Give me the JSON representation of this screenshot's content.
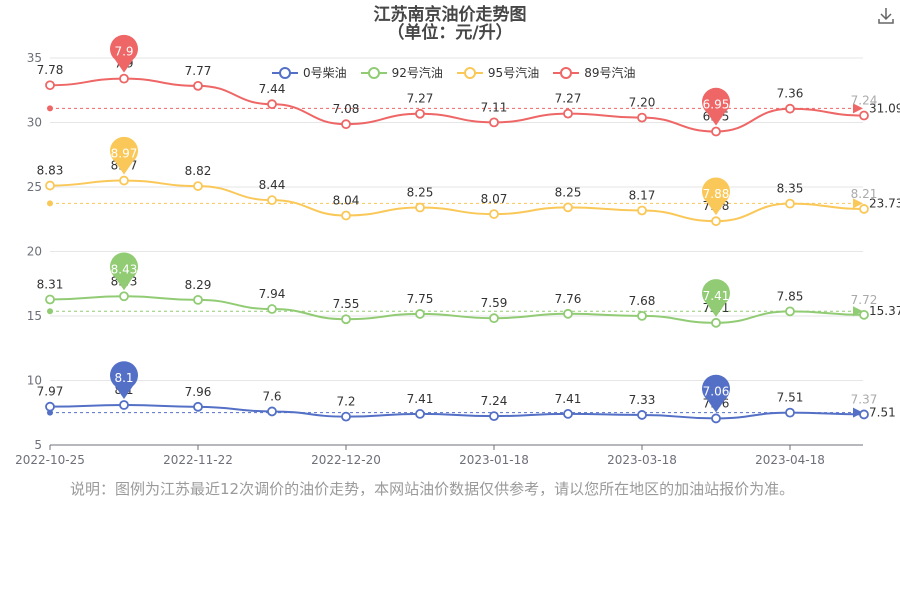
{
  "title": "江苏南京油价走势图",
  "subtitle": "（单位：元/升）",
  "note": "说明：图例为江苏最近12次调价的油价走势，本网站油价数据仅供参考，请以您所在地区的加油站报价为准。",
  "icons": {
    "download": "download-icon"
  },
  "chart_data": {
    "type": "line",
    "x": [
      "2022-10-25",
      "2022-11-08",
      "2022-11-22",
      "2022-12-06",
      "2022-12-20",
      "2023-01-03",
      "2023-01-18",
      "2023-02-03",
      "2023-03-18a",
      "2023-03-18",
      "2023-04-04",
      "2023-04-18"
    ],
    "xticks": [
      "2022-10-25",
      "2022-11-22",
      "2022-12-20",
      "2023-01-18",
      "2023-03-18",
      "2023-04-18"
    ],
    "yticks": [
      5,
      10,
      15,
      20,
      25,
      30,
      35
    ],
    "ylim": [
      5,
      35
    ],
    "grid": true,
    "legend_position": "top",
    "series": [
      {
        "name": "0号柴油",
        "color": "#5470c6",
        "prices": [
          7.97,
          8.1,
          7.96,
          7.6,
          7.2,
          7.41,
          7.24,
          7.41,
          7.33,
          7.06,
          7.51,
          7.37
        ],
        "labels": [
          "7.97",
          "8.1",
          "7.96",
          "7.6",
          "7.2",
          "7.41",
          "7.24",
          "7.41",
          "7.33",
          "7.06",
          "7.51",
          "7.37"
        ],
        "max_marker": "8.1",
        "min_marker": "7.06",
        "average": "7.51"
      },
      {
        "name": "92号汽油",
        "color": "#91cc75",
        "prices": [
          8.31,
          8.43,
          8.29,
          7.94,
          7.55,
          7.75,
          7.59,
          7.76,
          7.68,
          7.41,
          7.85,
          7.72
        ],
        "labels": [
          "8.31",
          "8.43",
          "8.29",
          "7.94",
          "7.55",
          "7.75",
          "7.59",
          "7.76",
          "7.68",
          "7.41",
          "7.85",
          "7.72"
        ],
        "max_marker": "8.43",
        "min_marker": "7.41",
        "average": "15.37"
      },
      {
        "name": "95号汽油",
        "color": "#fac858",
        "prices": [
          8.83,
          8.97,
          8.82,
          8.44,
          8.04,
          8.25,
          8.07,
          8.25,
          8.17,
          7.88,
          8.35,
          8.21
        ],
        "labels": [
          "8.83",
          "8.97",
          "8.82",
          "8.44",
          "8.04",
          "8.25",
          "8.07",
          "8.25",
          "8.17",
          "7.88",
          "8.35",
          "8.21"
        ],
        "max_marker": "8.97",
        "min_marker": "7.88",
        "average": "23.73"
      },
      {
        "name": "89号汽油",
        "color": "#ee6666",
        "prices": [
          7.78,
          7.9,
          7.77,
          7.44,
          7.08,
          7.27,
          7.11,
          7.27,
          7.2,
          6.95,
          7.36,
          7.24
        ],
        "labels": [
          "7.78",
          "7.9",
          "7.77",
          "7.44",
          "7.08",
          "7.27",
          "7.11",
          "7.27",
          "7.20",
          "6.95",
          "7.36",
          "7.24"
        ],
        "max_marker": "7.9",
        "min_marker": "6.95",
        "average": "31.09"
      }
    ]
  }
}
